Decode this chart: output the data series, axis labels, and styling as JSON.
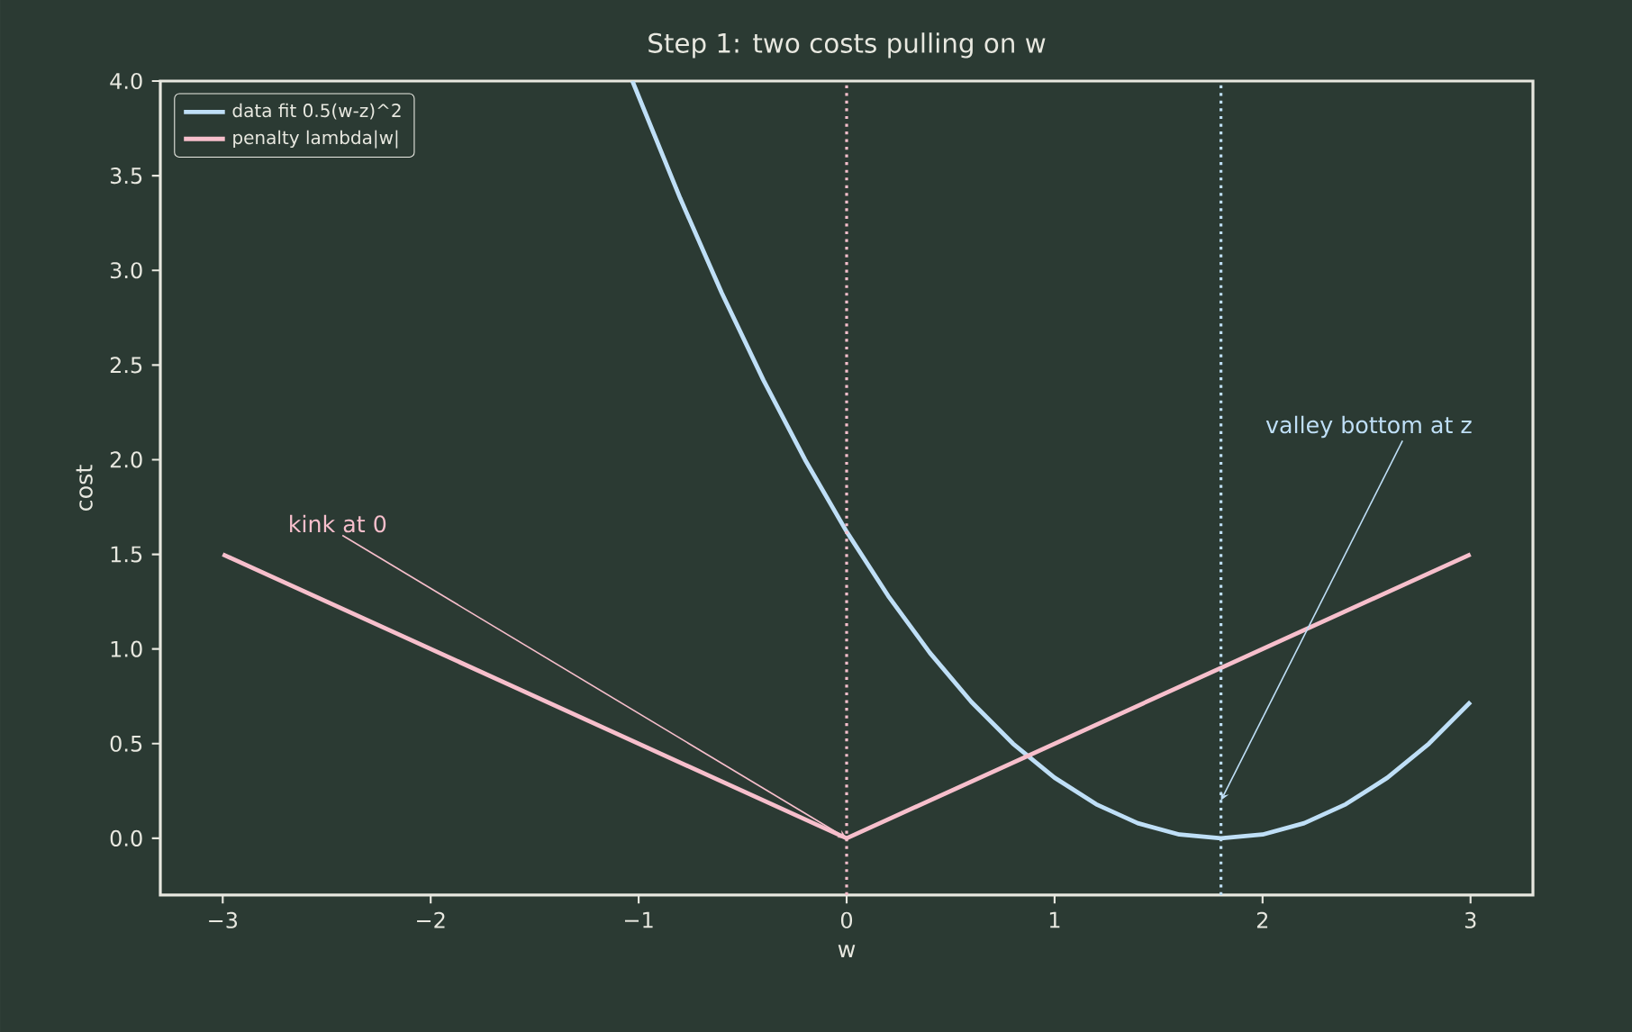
{
  "chart_data": {
    "type": "line",
    "title": "Step 1: two costs pulling on w",
    "xlabel": "w",
    "ylabel": "cost",
    "xlim": [
      -3.3,
      3.3
    ],
    "ylim": [
      -0.3,
      4.0
    ],
    "xticks": [
      {
        "value": -3,
        "label": "−3"
      },
      {
        "value": -2,
        "label": "−2"
      },
      {
        "value": -1,
        "label": "−1"
      },
      0,
      1,
      2,
      3
    ],
    "yticks": [
      {
        "value": 0,
        "label": "0.0"
      },
      {
        "value": 0.5,
        "label": "0.5"
      },
      {
        "value": 1,
        "label": "1.0"
      },
      {
        "value": 1.5,
        "label": "1.5"
      },
      {
        "value": 2,
        "label": "2.0"
      },
      {
        "value": 2.5,
        "label": "2.5"
      },
      {
        "value": 3,
        "label": "3.0"
      },
      {
        "value": 3.5,
        "label": "3.5"
      },
      {
        "value": 4,
        "label": "4.0"
      }
    ],
    "series": [
      {
        "name": "data fit  0.5(w-z)^2",
        "color": "#bfdff7",
        "x": [
          -1.03,
          -0.8,
          -0.6,
          -0.4,
          -0.2,
          0,
          0.2,
          0.4,
          0.6,
          0.8,
          1.0,
          1.2,
          1.4,
          1.6,
          1.8,
          2.0,
          2.2,
          2.4,
          2.6,
          2.8,
          3.0
        ],
        "values": [
          4.0,
          3.38,
          2.88,
          2.42,
          2.0,
          1.62,
          1.28,
          0.98,
          0.72,
          0.5,
          0.32,
          0.18,
          0.08,
          0.02,
          0,
          0.02,
          0.08,
          0.18,
          0.32,
          0.5,
          0.72
        ]
      },
      {
        "name": "penalty  lambda|w|",
        "color": "#f7bfcc",
        "x": [
          -3,
          0,
          3
        ],
        "values": [
          1.5,
          0,
          1.5
        ]
      }
    ],
    "ref_lines": [
      {
        "axis": "x",
        "value": 0,
        "color": "#f7bfcc",
        "line_style": "dotted"
      },
      {
        "axis": "x",
        "value": 1.8,
        "color": "#bfdff7",
        "line_style": "dotted"
      }
    ],
    "annotations": [
      {
        "text": "kink at 0",
        "x": 0,
        "y": 0
      },
      {
        "text": "valley bottom at z",
        "x": 1.8,
        "y": 0.2
      }
    ],
    "legend": "top left"
  }
}
